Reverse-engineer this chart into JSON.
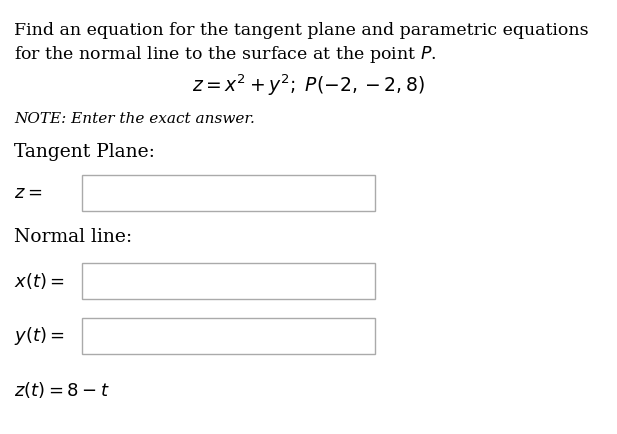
{
  "background_color": "#ffffff",
  "title_line1": "Find an equation for the tangent plane and parametric equations",
  "title_line2": "for the normal line to the surface at the point $P$.",
  "equation": "$z = x^2 + y^2;\\; P(-2,-2,8)$",
  "note": "NOTE: Enter the exact answer.",
  "tangent_label": "Tangent Plane:",
  "tangent_prefix": "$z =$",
  "normal_label": "Normal line:",
  "xt_prefix": "$x(t) =$",
  "yt_prefix": "$y(t) =$",
  "zt_line": "$z(t) = 8 - t$",
  "text_color": "#000000",
  "box_color": "#ffffff",
  "box_edge_color": "#aaaaaa",
  "font_size_title": 12.5,
  "font_size_eq": 13.5,
  "font_size_note": 11,
  "font_size_section": 13.5,
  "font_size_label": 13,
  "font_size_zt": 13
}
